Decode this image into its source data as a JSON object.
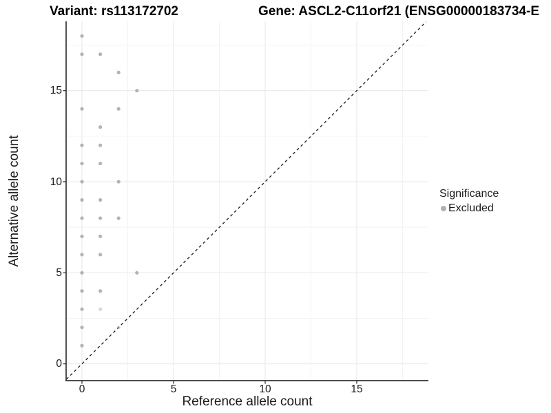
{
  "titles": {
    "variant": "Variant: rs113172702",
    "gene": "Gene: ASCL2-C11orf21 (ENSG00000183734-E"
  },
  "colors": {
    "point": "#a6a6a6",
    "point_faint": "#c9c9c9",
    "grid_major": "#e9e9e9",
    "grid_minor": "#f3f3f3",
    "axis_line": "#333333",
    "identity_line": "#1a1a1a",
    "legend_dot": "#b0b0b0",
    "text": "#1a1a1a"
  },
  "chart_data": {
    "type": "scatter",
    "title_left": "Variant: rs113172702",
    "title_right": "Gene: ASCL2-C11orf21 (ENSG00000183734-E",
    "xlabel": "Reference allele count",
    "ylabel": "Alternative allele count",
    "xlim": [
      -0.87,
      18.9
    ],
    "ylim": [
      -0.93,
      18.8
    ],
    "x_ticks": [
      0,
      5,
      10,
      15
    ],
    "y_ticks": [
      0,
      5,
      10,
      15
    ],
    "x_minor_ticks": [
      2.5,
      7.5,
      12.5,
      17.5
    ],
    "y_minor_ticks": [
      2.5,
      7.5,
      12.5,
      17.5
    ],
    "grid": "major+minor",
    "identity_line": {
      "style": "dashed",
      "from": [
        -0.85,
        -0.85
      ],
      "to": [
        18.78,
        18.78
      ]
    },
    "legend": {
      "title": "Significance",
      "position": "right",
      "entries": [
        {
          "label": "Excluded",
          "color": "#b0b0b0"
        }
      ]
    },
    "series": [
      {
        "name": "Excluded",
        "color": "#a6a6a6",
        "points": [
          [
            0,
            1
          ],
          [
            0,
            2
          ],
          [
            0,
            3
          ],
          [
            0,
            4
          ],
          [
            0,
            5
          ],
          [
            0,
            6
          ],
          [
            0,
            7
          ],
          [
            0,
            8
          ],
          [
            0,
            9
          ],
          [
            0,
            10
          ],
          [
            0,
            11
          ],
          [
            0,
            12
          ],
          [
            0,
            14
          ],
          [
            0,
            17
          ],
          [
            0,
            18
          ],
          [
            1,
            3
          ],
          [
            1,
            4
          ],
          [
            1,
            6
          ],
          [
            1,
            7
          ],
          [
            1,
            8
          ],
          [
            1,
            9
          ],
          [
            1,
            11
          ],
          [
            1,
            12
          ],
          [
            1,
            13
          ],
          [
            1,
            17
          ],
          [
            2,
            2
          ],
          [
            2,
            8
          ],
          [
            2,
            10
          ],
          [
            2,
            14
          ],
          [
            2,
            16
          ],
          [
            3,
            5
          ],
          [
            3,
            15
          ]
        ]
      }
    ],
    "low_opacity_points": [
      [
        1,
        3
      ],
      [
        2,
        2
      ]
    ]
  }
}
